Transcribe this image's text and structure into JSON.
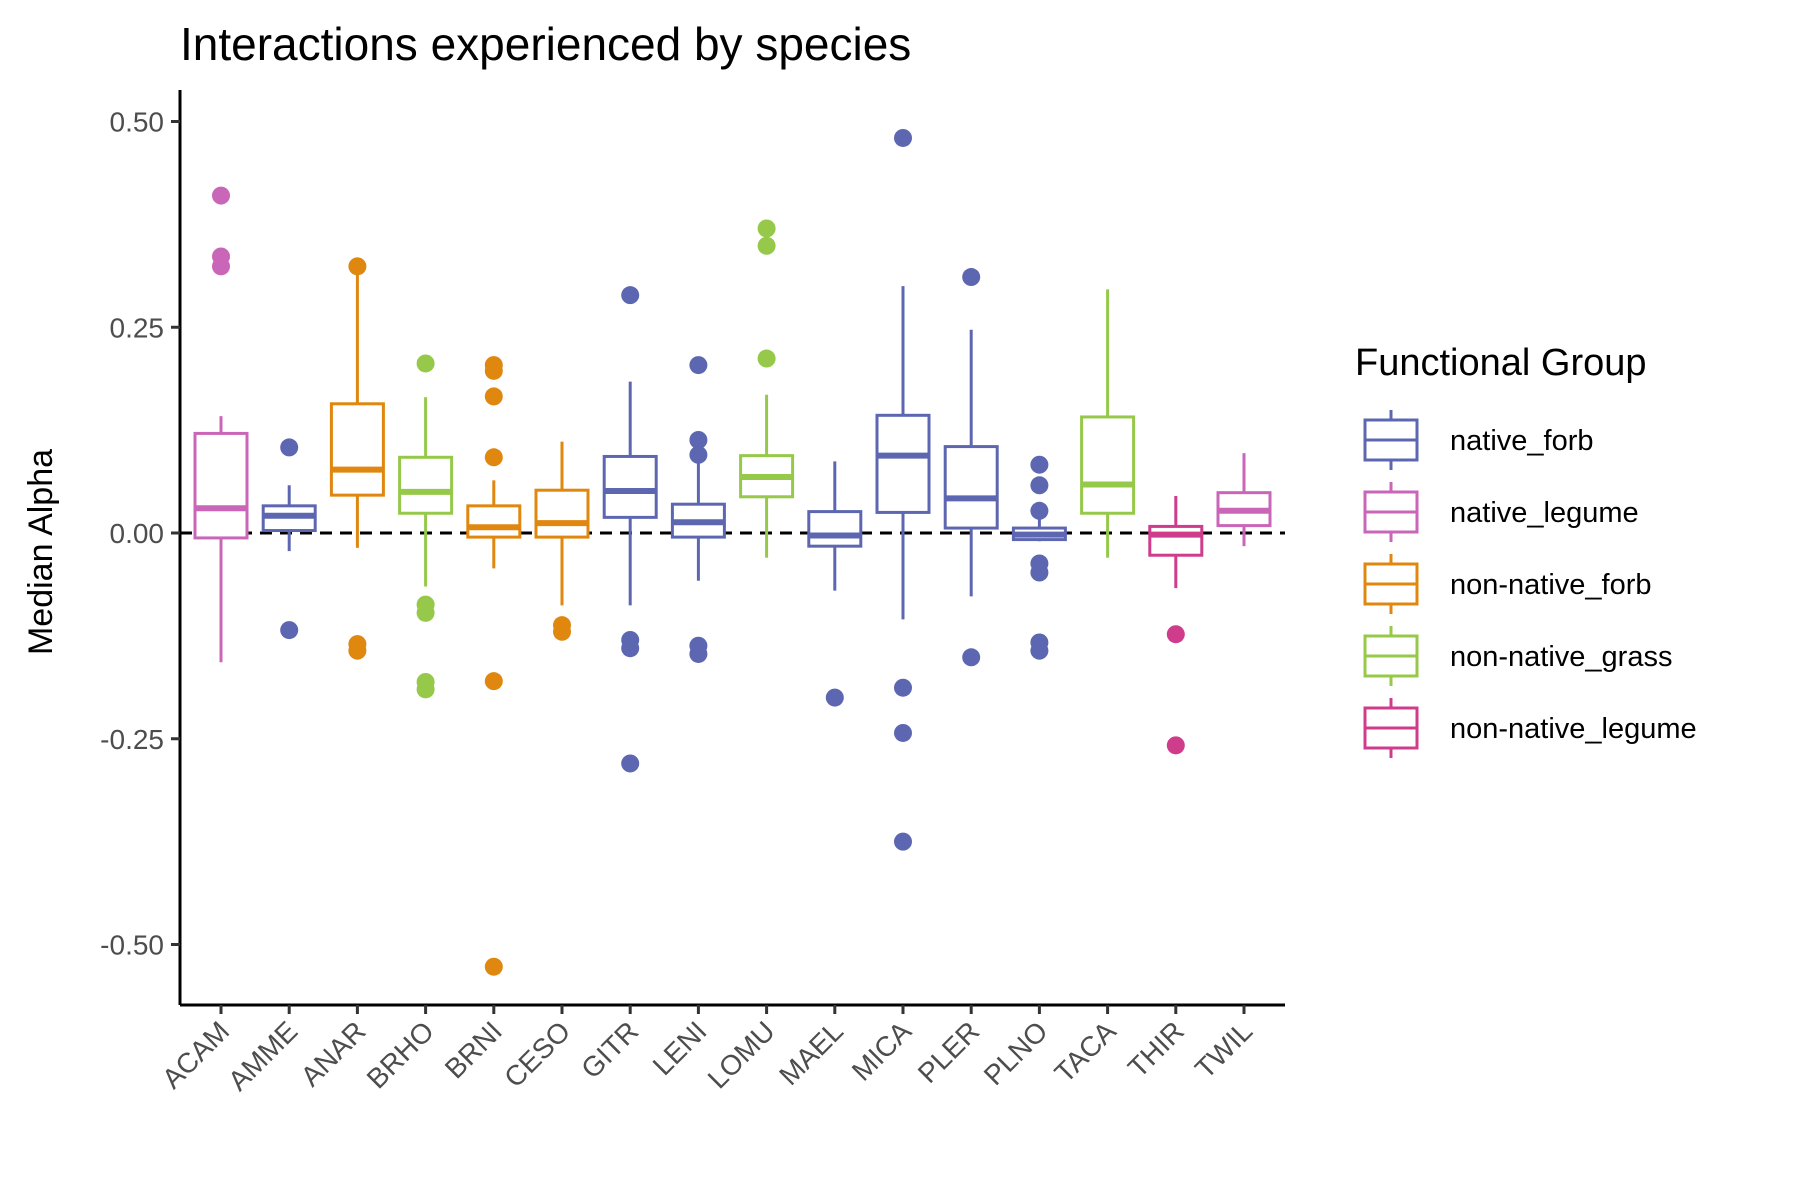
{
  "chart_data": {
    "type": "boxplot",
    "title": "Interactions experienced by species",
    "xlabel": "",
    "ylabel": "Median Alpha",
    "ylim": [
      -0.58,
      0.53
    ],
    "y_ticks": [
      "-0.50",
      "-0.25",
      "0.00",
      "0.25",
      "0.50"
    ],
    "y_tick_values": [
      -0.5,
      -0.25,
      0.0,
      0.25,
      0.5
    ],
    "reference_line": {
      "y": 0.0,
      "style": "dashed"
    },
    "grid": false,
    "legend": {
      "title": "Functional Group",
      "position": "right",
      "entries": [
        {
          "name": "native_forb",
          "color": "#5d67b1"
        },
        {
          "name": "native_legume",
          "color": "#c966b8"
        },
        {
          "name": "non-native_forb",
          "color": "#e0870f"
        },
        {
          "name": "non-native_grass",
          "color": "#96c84a"
        },
        {
          "name": "non-native_legume",
          "color": "#d03c8c"
        }
      ]
    },
    "categories": [
      "ACAM",
      "AMME",
      "ANAR",
      "BRHO",
      "BRNI",
      "CESO",
      "GITR",
      "LENI",
      "LOMU",
      "MAEL",
      "MICA",
      "PLER",
      "PLNO",
      "TACA",
      "THIR",
      "TWIL"
    ],
    "boxes": [
      {
        "category": "ACAM",
        "group": "native_legume",
        "whisker_low": -0.157,
        "q1": -0.006,
        "median": 0.03,
        "q3": 0.121,
        "whisker_high": 0.142,
        "outliers": [
          0.41,
          0.336,
          0.324
        ]
      },
      {
        "category": "AMME",
        "group": "native_forb",
        "whisker_low": -0.022,
        "q1": 0.003,
        "median": 0.021,
        "q3": 0.033,
        "whisker_high": 0.058,
        "outliers": [
          0.104,
          -0.118
        ]
      },
      {
        "category": "ANAR",
        "group": "non-native_forb",
        "whisker_low": -0.018,
        "q1": 0.046,
        "median": 0.077,
        "q3": 0.157,
        "whisker_high": 0.324,
        "outliers": [
          0.324,
          -0.135,
          -0.143
        ]
      },
      {
        "category": "BRHO",
        "group": "non-native_grass",
        "whisker_low": -0.065,
        "q1": 0.024,
        "median": 0.05,
        "q3": 0.092,
        "whisker_high": 0.165,
        "outliers": [
          0.206,
          -0.087,
          -0.097,
          -0.181,
          -0.19
        ]
      },
      {
        "category": "BRNI",
        "group": "non-native_forb",
        "whisker_low": -0.043,
        "q1": -0.005,
        "median": 0.007,
        "q3": 0.033,
        "whisker_high": 0.064,
        "outliers": [
          0.204,
          0.197,
          0.166,
          0.092,
          -0.18,
          -0.527
        ]
      },
      {
        "category": "CESO",
        "group": "non-native_forb",
        "whisker_low": -0.088,
        "q1": -0.005,
        "median": 0.012,
        "q3": 0.052,
        "whisker_high": 0.111,
        "outliers": [
          -0.112,
          -0.12
        ]
      },
      {
        "category": "GITR",
        "group": "native_forb",
        "whisker_low": -0.088,
        "q1": 0.019,
        "median": 0.051,
        "q3": 0.093,
        "whisker_high": 0.184,
        "outliers": [
          0.289,
          -0.13,
          -0.14,
          -0.28
        ]
      },
      {
        "category": "LENI",
        "group": "native_forb",
        "whisker_low": -0.058,
        "q1": -0.005,
        "median": 0.013,
        "q3": 0.035,
        "whisker_high": 0.085,
        "outliers": [
          0.204,
          0.113,
          0.095,
          -0.137,
          -0.147
        ]
      },
      {
        "category": "LOMU",
        "group": "non-native_grass",
        "whisker_low": -0.03,
        "q1": 0.044,
        "median": 0.068,
        "q3": 0.094,
        "whisker_high": 0.168,
        "outliers": [
          0.37,
          0.349,
          0.212
        ]
      },
      {
        "category": "MAEL",
        "group": "native_forb",
        "whisker_low": -0.07,
        "q1": -0.016,
        "median": -0.003,
        "q3": 0.026,
        "whisker_high": 0.087,
        "outliers": [
          -0.2
        ]
      },
      {
        "category": "MICA",
        "group": "native_forb",
        "whisker_low": -0.105,
        "q1": 0.025,
        "median": 0.094,
        "q3": 0.143,
        "whisker_high": 0.3,
        "outliers": [
          0.48,
          -0.188,
          -0.243,
          -0.375
        ]
      },
      {
        "category": "PLER",
        "group": "native_forb",
        "whisker_low": -0.077,
        "q1": 0.006,
        "median": 0.042,
        "q3": 0.105,
        "whisker_high": 0.247,
        "outliers": [
          0.311,
          -0.151
        ]
      },
      {
        "category": "PLNO",
        "group": "native_forb",
        "whisker_low": -0.01,
        "q1": -0.008,
        "median": -0.002,
        "q3": 0.006,
        "whisker_high": 0.02,
        "outliers": [
          0.083,
          0.058,
          0.027,
          -0.037,
          -0.048,
          -0.133,
          -0.143
        ]
      },
      {
        "category": "TACA",
        "group": "non-native_grass",
        "whisker_low": -0.03,
        "q1": 0.024,
        "median": 0.059,
        "q3": 0.141,
        "whisker_high": 0.296,
        "outliers": []
      },
      {
        "category": "THIR",
        "group": "non-native_legume",
        "whisker_low": -0.067,
        "q1": -0.027,
        "median": -0.002,
        "q3": 0.008,
        "whisker_high": 0.045,
        "outliers": [
          -0.123,
          -0.258
        ]
      },
      {
        "category": "TWIL",
        "group": "native_legume",
        "whisker_low": -0.016,
        "q1": 0.009,
        "median": 0.027,
        "q3": 0.049,
        "whisker_high": 0.097,
        "outliers": []
      }
    ]
  }
}
